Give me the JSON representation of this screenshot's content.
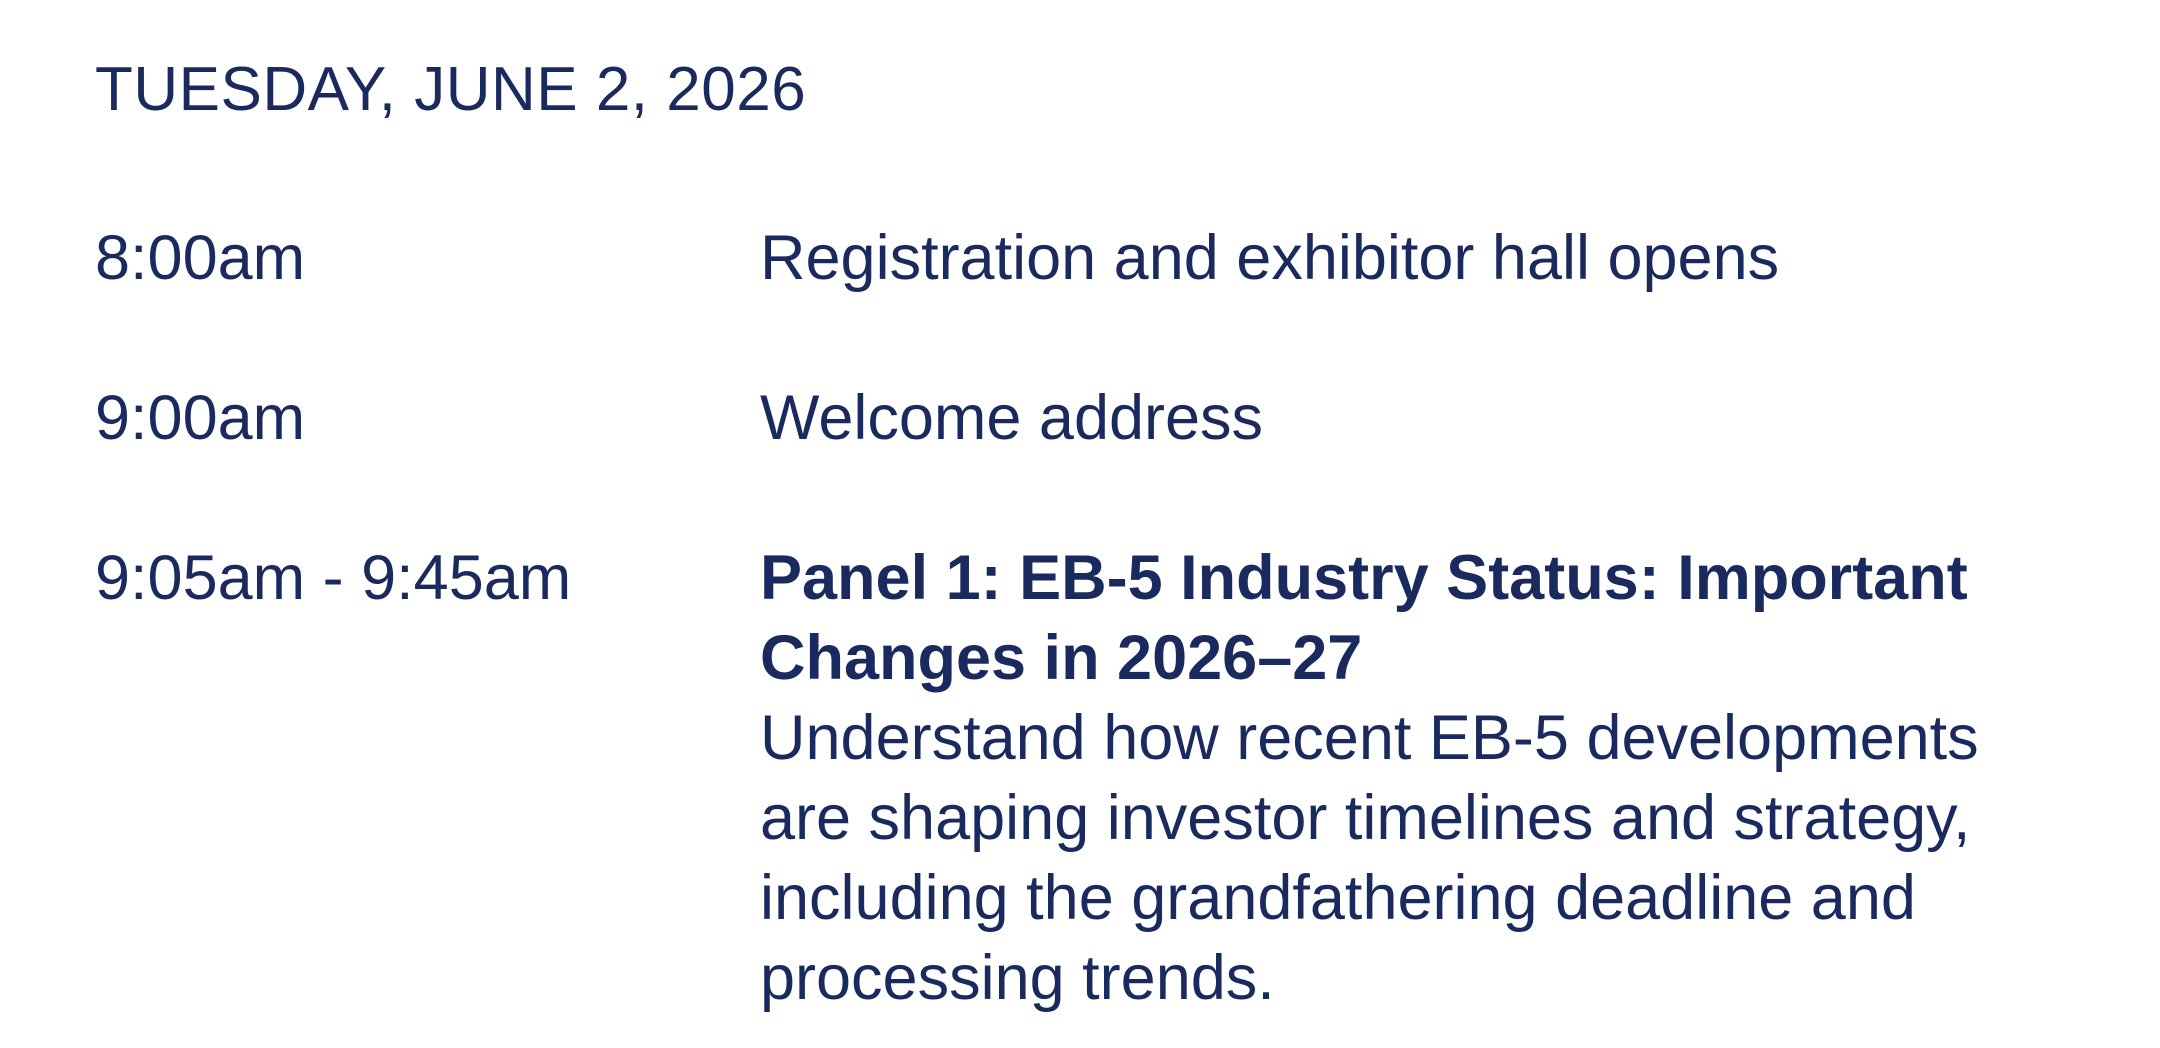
{
  "page": {
    "background_color": "#ffffff",
    "text_color": "#1b2a5e"
  },
  "schedule": {
    "date_header": "TUESDAY, JUNE 2, 2026",
    "rows": [
      {
        "time": "8:00am",
        "description": "Registration and exhibitor hall opens"
      },
      {
        "time": "9:00am",
        "description": "Welcome address"
      },
      {
        "time": "9:05am - 9:45am",
        "title": "Panel 1: EB-5 Industry Status: Important Changes in 2026–27",
        "description": "Understand how recent EB-5 developments are shaping investor timelines and strategy, including the grandfathering deadline and processing trends."
      }
    ]
  }
}
